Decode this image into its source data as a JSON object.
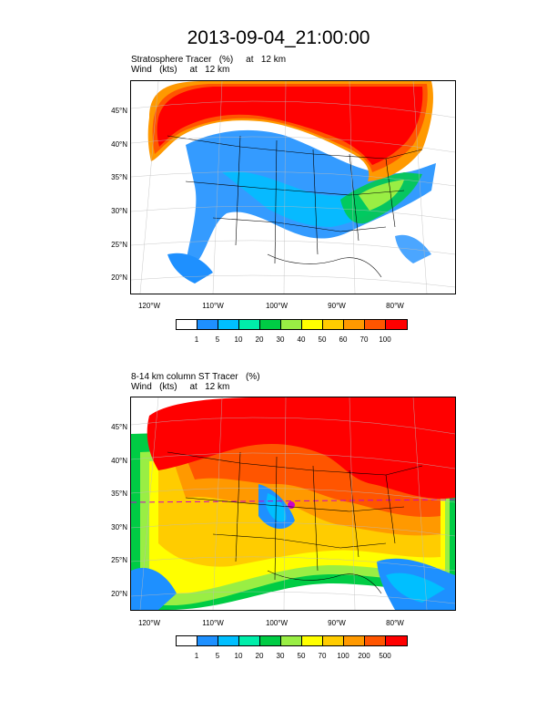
{
  "title": "2013-09-04_21:00:00",
  "panel1": {
    "caption_line1": "Stratosphere Tracer   (%)     at   12 km",
    "caption_line2": "Wind   (kts)     at   12 km",
    "colorbar_labels": [
      "1",
      "5",
      "10",
      "20",
      "30",
      "40",
      "50",
      "60",
      "70",
      "100"
    ]
  },
  "panel2": {
    "caption_line1": "8-14 km column ST Tracer   (%)",
    "caption_line2": "Wind   (kts)     at   12 km",
    "colorbar_labels": [
      "1",
      "5",
      "10",
      "20",
      "30",
      "50",
      "70",
      "100",
      "200",
      "500"
    ]
  },
  "lat_labels": [
    "45°N",
    "40°N",
    "35°N",
    "30°N",
    "25°N",
    "20°N"
  ],
  "lon_labels": [
    "120°W",
    "110°W",
    "100°W",
    "90°W",
    "80°W"
  ],
  "colorbar_colors": [
    "#ffffff",
    "#1e90ff",
    "#00bfff",
    "#00eeaa",
    "#00cc44",
    "#99ee44",
    "#ffff00",
    "#ffcc00",
    "#ff9900",
    "#ff5500",
    "#ff0000"
  ]
}
